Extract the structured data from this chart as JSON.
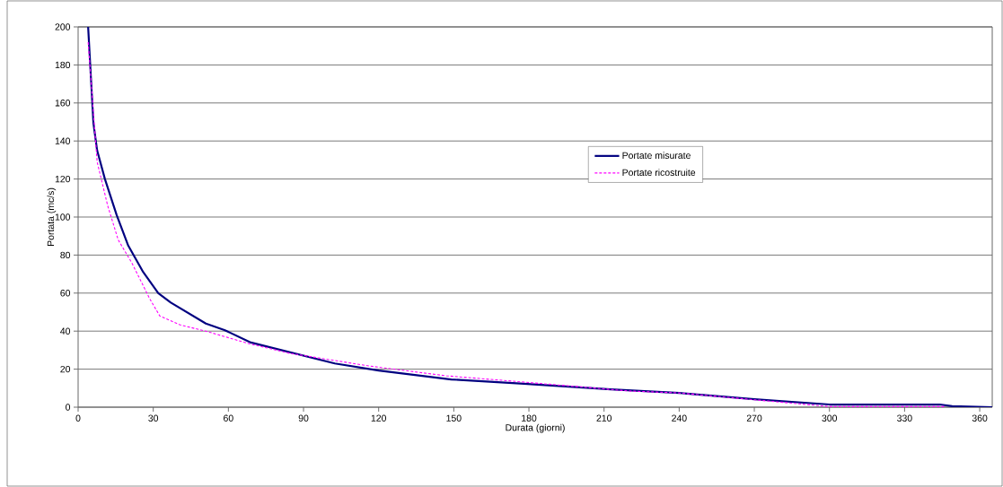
{
  "chart_data": {
    "type": "line",
    "xlabel": "Durata (giorni)",
    "ylabel": "Portata (mc/s)",
    "xlim": [
      0,
      365
    ],
    "ylim": [
      0,
      200
    ],
    "xticks": [
      0,
      30,
      60,
      90,
      120,
      150,
      180,
      210,
      240,
      270,
      300,
      330,
      360
    ],
    "yticks": [
      0,
      20,
      40,
      60,
      80,
      100,
      120,
      140,
      160,
      180,
      200
    ],
    "grid": "y",
    "legend": "right",
    "marker": "none",
    "series": [
      {
        "name": "Portate misurate",
        "color": "#000080",
        "line_style": "solid",
        "x": [
          4,
          6.1,
          7.6,
          10.7,
          15.4,
          20,
          26,
          32,
          37,
          51,
          58.4,
          69,
          102.5,
          120,
          149,
          178,
          212.6,
          240,
          270,
          300,
          344,
          349,
          365
        ],
        "values": [
          200,
          149.5,
          135,
          120,
          101,
          85,
          71,
          60,
          55,
          44,
          40.6,
          34,
          23,
          19.3,
          14.6,
          12.3,
          9.4,
          7.5,
          4.2,
          1.4,
          1.4,
          0.5,
          0
        ]
      },
      {
        "name": "Portate ricostruite",
        "color": "#ff00ff",
        "line_style": "dashed",
        "x": [
          4,
          6,
          7.6,
          11.8,
          16,
          21.4,
          28.6,
          32.6,
          40.5,
          52,
          68,
          84.6,
          116,
          147,
          178,
          220,
          240,
          270,
          300,
          346
        ],
        "values": [
          192,
          157,
          129,
          106,
          88,
          76,
          57,
          48,
          43.4,
          39.6,
          33.5,
          28.3,
          21.7,
          16.5,
          13.2,
          8.5,
          7.5,
          3.9,
          0.3,
          0.3
        ]
      }
    ]
  }
}
